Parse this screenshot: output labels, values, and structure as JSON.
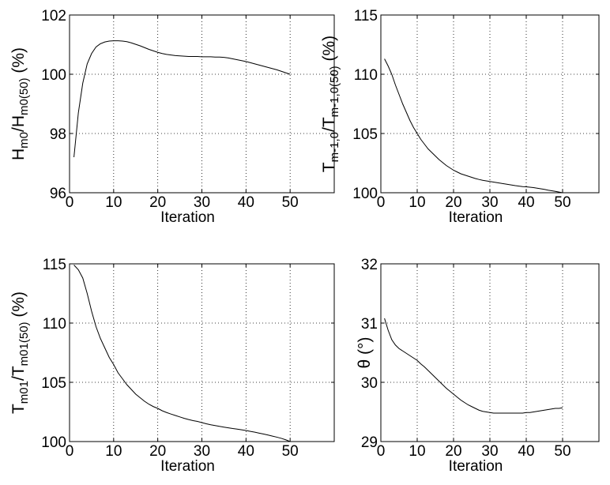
{
  "chart_data": [
    {
      "type": "line",
      "xlabel": "Iteration",
      "ylabel": {
        "parts": [
          {
            "t": "H",
            "sub": false
          },
          {
            "t": "m0",
            "sub": true
          },
          {
            "t": "/H",
            "sub": false
          },
          {
            "t": "m0(50)",
            "sub": true
          },
          {
            "t": " (%)",
            "sub": false
          }
        ]
      },
      "xlim": [
        0,
        60
      ],
      "ylim": [
        96,
        102
      ],
      "xticks": [
        0,
        10,
        20,
        30,
        40,
        50
      ],
      "yticks": [
        96,
        98,
        100,
        102
      ],
      "grid": true,
      "x": [
        1,
        2,
        3,
        4,
        5,
        6,
        7,
        8,
        9,
        10,
        11,
        12,
        13,
        14,
        15,
        16,
        17,
        18,
        19,
        20,
        21,
        22,
        23,
        24,
        25,
        26,
        27,
        28,
        29,
        30,
        31,
        32,
        33,
        34,
        35,
        36,
        37,
        38,
        39,
        40,
        41,
        42,
        43,
        44,
        45,
        46,
        47,
        48,
        49,
        50
      ],
      "values": [
        97.2,
        98.7,
        99.7,
        100.35,
        100.7,
        100.92,
        101.03,
        101.09,
        101.12,
        101.13,
        101.13,
        101.12,
        101.1,
        101.06,
        101.01,
        100.96,
        100.9,
        100.84,
        100.79,
        100.74,
        100.7,
        100.67,
        100.65,
        100.63,
        100.62,
        100.61,
        100.6,
        100.6,
        100.6,
        100.59,
        100.59,
        100.59,
        100.58,
        100.58,
        100.57,
        100.55,
        100.52,
        100.49,
        100.46,
        100.43,
        100.39,
        100.35,
        100.31,
        100.27,
        100.23,
        100.19,
        100.15,
        100.1,
        100.05,
        100.0
      ]
    },
    {
      "type": "line",
      "xlabel": "Iteration",
      "ylabel": {
        "parts": [
          {
            "t": "T",
            "sub": false
          },
          {
            "t": "m-1,0",
            "sub": true
          },
          {
            "t": "/T",
            "sub": false
          },
          {
            "t": "m-1,0(50)",
            "sub": true
          },
          {
            "t": " (%)",
            "sub": false
          }
        ]
      },
      "xlim": [
        0,
        60
      ],
      "ylim": [
        100,
        115
      ],
      "xticks": [
        0,
        10,
        20,
        30,
        40,
        50
      ],
      "yticks": [
        100,
        105,
        110,
        115
      ],
      "grid": true,
      "x": [
        1,
        2,
        3,
        4,
        5,
        6,
        7,
        8,
        9,
        10,
        11,
        12,
        13,
        14,
        15,
        16,
        17,
        18,
        19,
        20,
        21,
        22,
        23,
        24,
        25,
        26,
        27,
        28,
        29,
        30,
        31,
        32,
        33,
        34,
        35,
        36,
        37,
        38,
        39,
        40,
        41,
        42,
        43,
        44,
        45,
        46,
        47,
        48,
        49,
        50
      ],
      "values": [
        111.3,
        110.7,
        110.0,
        109.1,
        108.3,
        107.5,
        106.8,
        106.1,
        105.5,
        105.0,
        104.5,
        104.1,
        103.7,
        103.4,
        103.1,
        102.8,
        102.55,
        102.3,
        102.1,
        101.9,
        101.75,
        101.6,
        101.5,
        101.4,
        101.3,
        101.2,
        101.12,
        101.05,
        101.0,
        100.95,
        100.9,
        100.85,
        100.8,
        100.75,
        100.7,
        100.65,
        100.6,
        100.56,
        100.52,
        100.5,
        100.47,
        100.43,
        100.38,
        100.33,
        100.28,
        100.22,
        100.17,
        100.12,
        100.06,
        100.0
      ]
    },
    {
      "type": "line",
      "xlabel": "Iteration",
      "ylabel": {
        "parts": [
          {
            "t": "T",
            "sub": false
          },
          {
            "t": "m01",
            "sub": true
          },
          {
            "t": "/T",
            "sub": false
          },
          {
            "t": "m01(50)",
            "sub": true
          },
          {
            "t": " (%)",
            "sub": false
          }
        ]
      },
      "xlim": [
        0,
        60
      ],
      "ylim": [
        100,
        115
      ],
      "xticks": [
        0,
        10,
        20,
        30,
        40,
        50
      ],
      "yticks": [
        100,
        105,
        110,
        115
      ],
      "grid": true,
      "x": [
        1,
        2,
        3,
        4,
        5,
        6,
        7,
        8,
        9,
        10,
        11,
        12,
        13,
        14,
        15,
        16,
        17,
        18,
        19,
        20,
        21,
        22,
        23,
        24,
        25,
        26,
        27,
        28,
        29,
        30,
        31,
        32,
        33,
        34,
        35,
        36,
        37,
        38,
        39,
        40,
        41,
        42,
        43,
        44,
        45,
        46,
        47,
        48,
        49,
        50
      ],
      "values": [
        114.9,
        114.5,
        113.8,
        112.5,
        111.0,
        109.7,
        108.7,
        107.9,
        107.1,
        106.5,
        105.8,
        105.3,
        104.8,
        104.4,
        104.0,
        103.7,
        103.4,
        103.15,
        102.95,
        102.8,
        102.6,
        102.45,
        102.32,
        102.2,
        102.08,
        101.96,
        101.86,
        101.77,
        101.7,
        101.6,
        101.5,
        101.42,
        101.35,
        101.28,
        101.22,
        101.16,
        101.1,
        101.05,
        100.99,
        100.93,
        100.86,
        100.79,
        100.71,
        100.63,
        100.55,
        100.46,
        100.37,
        100.27,
        100.15,
        100.0
      ]
    },
    {
      "type": "line",
      "xlabel": "Iteration",
      "ylabel": {
        "parts": [
          {
            "t": "θ (°)",
            "sub": false
          }
        ]
      },
      "xlim": [
        0,
        60
      ],
      "ylim": [
        29,
        32
      ],
      "xticks": [
        0,
        10,
        20,
        30,
        40,
        50
      ],
      "yticks": [
        29,
        30,
        31,
        32
      ],
      "grid": true,
      "x": [
        1,
        2,
        3,
        4,
        5,
        6,
        7,
        8,
        9,
        10,
        11,
        12,
        13,
        14,
        15,
        16,
        17,
        18,
        19,
        20,
        21,
        22,
        23,
        24,
        25,
        26,
        27,
        28,
        29,
        30,
        31,
        32,
        33,
        34,
        35,
        36,
        37,
        38,
        39,
        40,
        41,
        42,
        43,
        44,
        45,
        46,
        47,
        48,
        49,
        50
      ],
      "values": [
        31.08,
        30.88,
        30.72,
        30.63,
        30.57,
        30.53,
        30.49,
        30.45,
        30.41,
        30.37,
        30.31,
        30.26,
        30.2,
        30.14,
        30.08,
        30.02,
        29.96,
        29.9,
        29.85,
        29.8,
        29.75,
        29.7,
        29.66,
        29.62,
        29.59,
        29.56,
        29.53,
        29.51,
        29.5,
        29.49,
        29.48,
        29.48,
        29.48,
        29.48,
        29.48,
        29.48,
        29.48,
        29.48,
        29.48,
        29.49,
        29.49,
        29.5,
        29.51,
        29.52,
        29.53,
        29.54,
        29.55,
        29.56,
        29.56,
        29.57
      ]
    }
  ]
}
